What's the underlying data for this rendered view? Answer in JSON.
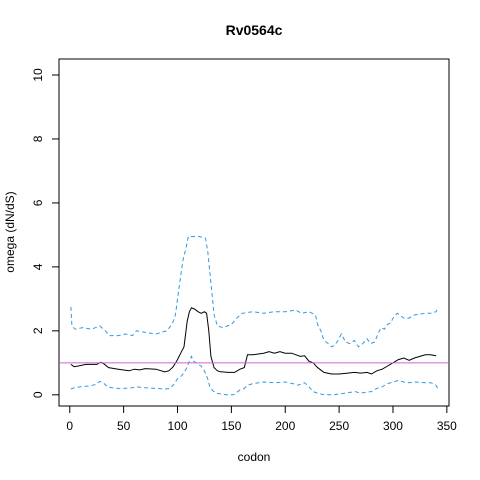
{
  "chart_data": {
    "type": "line",
    "title": "Rv0564c",
    "xlabel": "codon",
    "ylabel": "omega (dN/dS)",
    "xlim": [
      -10,
      352
    ],
    "ylim": [
      -0.35,
      10.5
    ],
    "x_ticks": [
      0,
      50,
      100,
      150,
      200,
      250,
      300,
      350
    ],
    "y_ticks": [
      0,
      2,
      4,
      6,
      8,
      10
    ],
    "reference_line": {
      "y": 1,
      "color": "#cc66cc"
    },
    "series": [
      {
        "role": "upper",
        "style": "dashed",
        "color": "#3399dd",
        "points": [
          [
            1,
            2.75
          ],
          [
            2,
            2.15
          ],
          [
            5,
            2.05
          ],
          [
            12,
            2.1
          ],
          [
            20,
            2.05
          ],
          [
            28,
            2.15
          ],
          [
            33,
            2.0
          ],
          [
            37,
            1.85
          ],
          [
            45,
            1.85
          ],
          [
            52,
            1.9
          ],
          [
            58,
            1.85
          ],
          [
            62,
            2.0
          ],
          [
            70,
            1.95
          ],
          [
            80,
            1.9
          ],
          [
            90,
            2.0
          ],
          [
            95,
            2.2
          ],
          [
            98,
            2.5
          ],
          [
            102,
            3.5
          ],
          [
            105,
            4.2
          ],
          [
            108,
            4.6
          ],
          [
            110,
            4.95
          ],
          [
            115,
            4.95
          ],
          [
            120,
            4.95
          ],
          [
            126,
            4.9
          ],
          [
            128,
            4.5
          ],
          [
            131,
            3.5
          ],
          [
            134,
            2.5
          ],
          [
            137,
            2.15
          ],
          [
            142,
            2.1
          ],
          [
            150,
            2.2
          ],
          [
            155,
            2.4
          ],
          [
            160,
            2.55
          ],
          [
            170,
            2.6
          ],
          [
            180,
            2.55
          ],
          [
            190,
            2.6
          ],
          [
            200,
            2.6
          ],
          [
            210,
            2.65
          ],
          [
            215,
            2.55
          ],
          [
            222,
            2.6
          ],
          [
            228,
            2.5
          ],
          [
            230,
            2.2
          ],
          [
            233,
            2.0
          ],
          [
            236,
            1.7
          ],
          [
            240,
            1.6
          ],
          [
            243,
            1.5
          ],
          [
            246,
            1.55
          ],
          [
            249,
            1.7
          ],
          [
            252,
            1.9
          ],
          [
            256,
            1.65
          ],
          [
            260,
            1.6
          ],
          [
            264,
            1.7
          ],
          [
            268,
            1.5
          ],
          [
            272,
            1.6
          ],
          [
            276,
            1.75
          ],
          [
            279,
            1.6
          ],
          [
            283,
            1.65
          ],
          [
            286,
            1.9
          ],
          [
            289,
            2.1
          ],
          [
            292,
            2.05
          ],
          [
            295,
            2.2
          ],
          [
            298,
            2.25
          ],
          [
            300,
            2.4
          ],
          [
            304,
            2.55
          ],
          [
            310,
            2.4
          ],
          [
            315,
            2.4
          ],
          [
            320,
            2.5
          ],
          [
            330,
            2.55
          ],
          [
            335,
            2.55
          ],
          [
            340,
            2.6
          ],
          [
            342,
            2.75
          ]
        ]
      },
      {
        "role": "estimate",
        "style": "solid",
        "color": "#000000",
        "points": [
          [
            1,
            0.95
          ],
          [
            4,
            0.88
          ],
          [
            8,
            0.9
          ],
          [
            15,
            0.95
          ],
          [
            20,
            0.95
          ],
          [
            25,
            0.95
          ],
          [
            29,
            1.02
          ],
          [
            32,
            0.96
          ],
          [
            36,
            0.85
          ],
          [
            45,
            0.8
          ],
          [
            55,
            0.75
          ],
          [
            60,
            0.8
          ],
          [
            65,
            0.78
          ],
          [
            70,
            0.82
          ],
          [
            80,
            0.8
          ],
          [
            88,
            0.72
          ],
          [
            92,
            0.75
          ],
          [
            96,
            0.88
          ],
          [
            100,
            1.1
          ],
          [
            103,
            1.3
          ],
          [
            106,
            1.5
          ],
          [
            109,
            2.3
          ],
          [
            111,
            2.6
          ],
          [
            113,
            2.72
          ],
          [
            116,
            2.68
          ],
          [
            119,
            2.6
          ],
          [
            122,
            2.55
          ],
          [
            125,
            2.6
          ],
          [
            127,
            2.55
          ],
          [
            129,
            2.0
          ],
          [
            131,
            1.2
          ],
          [
            134,
            0.85
          ],
          [
            137,
            0.75
          ],
          [
            140,
            0.72
          ],
          [
            147,
            0.7
          ],
          [
            153,
            0.7
          ],
          [
            158,
            0.8
          ],
          [
            162,
            0.85
          ],
          [
            165,
            1.25
          ],
          [
            170,
            1.25
          ],
          [
            180,
            1.3
          ],
          [
            185,
            1.35
          ],
          [
            190,
            1.3
          ],
          [
            195,
            1.35
          ],
          [
            200,
            1.3
          ],
          [
            206,
            1.3
          ],
          [
            210,
            1.25
          ],
          [
            214,
            1.2
          ],
          [
            218,
            1.22
          ],
          [
            222,
            1.05
          ],
          [
            226,
            1.0
          ],
          [
            229,
            0.88
          ],
          [
            232,
            0.8
          ],
          [
            236,
            0.7
          ],
          [
            243,
            0.65
          ],
          [
            250,
            0.65
          ],
          [
            258,
            0.68
          ],
          [
            264,
            0.7
          ],
          [
            270,
            0.68
          ],
          [
            276,
            0.7
          ],
          [
            280,
            0.65
          ],
          [
            285,
            0.75
          ],
          [
            290,
            0.8
          ],
          [
            295,
            0.9
          ],
          [
            300,
            1.0
          ],
          [
            305,
            1.1
          ],
          [
            310,
            1.15
          ],
          [
            315,
            1.08
          ],
          [
            320,
            1.15
          ],
          [
            325,
            1.2
          ],
          [
            330,
            1.25
          ],
          [
            335,
            1.25
          ],
          [
            340,
            1.22
          ]
        ]
      },
      {
        "role": "lower",
        "style": "dashed",
        "color": "#3399dd",
        "points": [
          [
            1,
            0.18
          ],
          [
            4,
            0.22
          ],
          [
            10,
            0.25
          ],
          [
            18,
            0.28
          ],
          [
            24,
            0.32
          ],
          [
            28,
            0.42
          ],
          [
            31,
            0.38
          ],
          [
            35,
            0.25
          ],
          [
            42,
            0.2
          ],
          [
            50,
            0.2
          ],
          [
            58,
            0.22
          ],
          [
            62,
            0.25
          ],
          [
            70,
            0.22
          ],
          [
            80,
            0.2
          ],
          [
            88,
            0.18
          ],
          [
            93,
            0.2
          ],
          [
            96,
            0.3
          ],
          [
            100,
            0.5
          ],
          [
            104,
            0.6
          ],
          [
            108,
            0.8
          ],
          [
            111,
            1.05
          ],
          [
            113,
            1.2
          ],
          [
            115,
            1.05
          ],
          [
            119,
            0.95
          ],
          [
            122,
            0.9
          ],
          [
            125,
            0.75
          ],
          [
            128,
            0.5
          ],
          [
            130,
            0.25
          ],
          [
            133,
            0.12
          ],
          [
            136,
            0.05
          ],
          [
            145,
            0.0
          ],
          [
            152,
            0.0
          ],
          [
            158,
            0.15
          ],
          [
            162,
            0.2
          ],
          [
            165,
            0.3
          ],
          [
            170,
            0.35
          ],
          [
            180,
            0.4
          ],
          [
            190,
            0.38
          ],
          [
            200,
            0.4
          ],
          [
            207,
            0.35
          ],
          [
            212,
            0.3
          ],
          [
            218,
            0.38
          ],
          [
            222,
            0.25
          ],
          [
            226,
            0.1
          ],
          [
            230,
            0.05
          ],
          [
            236,
            0.0
          ],
          [
            245,
            0.0
          ],
          [
            255,
            0.05
          ],
          [
            265,
            0.1
          ],
          [
            270,
            0.05
          ],
          [
            275,
            0.08
          ],
          [
            280,
            0.1
          ],
          [
            285,
            0.2
          ],
          [
            290,
            0.25
          ],
          [
            295,
            0.35
          ],
          [
            300,
            0.4
          ],
          [
            305,
            0.45
          ],
          [
            310,
            0.4
          ],
          [
            315,
            0.38
          ],
          [
            320,
            0.4
          ],
          [
            330,
            0.38
          ],
          [
            335,
            0.38
          ],
          [
            340,
            0.3
          ],
          [
            342,
            0.15
          ]
        ]
      }
    ]
  }
}
